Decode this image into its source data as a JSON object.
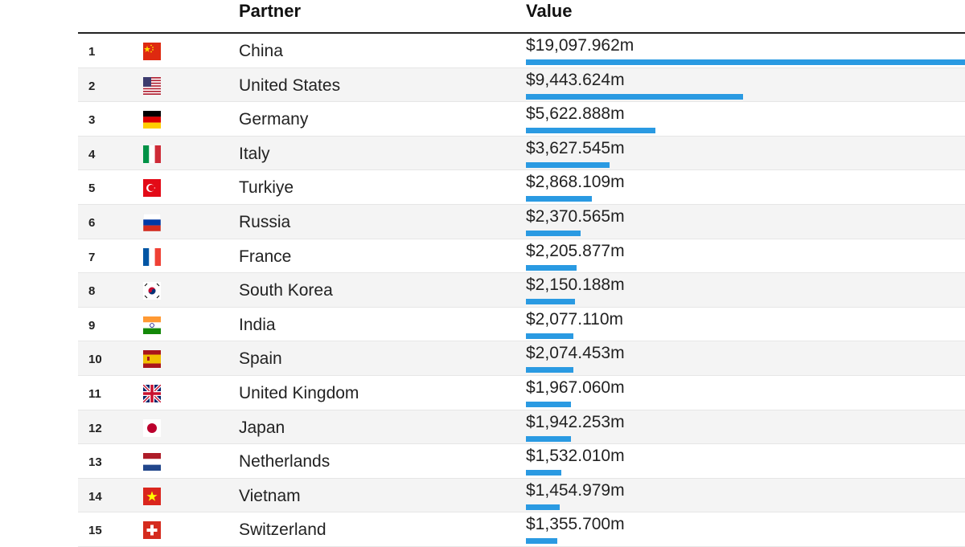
{
  "header": {
    "partner": "Partner",
    "value": "Value"
  },
  "colors": {
    "bar": "#2a9ae2"
  },
  "chart_data": {
    "type": "bar",
    "orientation": "horizontal",
    "title": "",
    "xlabel": "Value",
    "ylabel": "Partner",
    "unit": "$m",
    "categories": [
      "China",
      "United States",
      "Germany",
      "Italy",
      "Turkiye",
      "Russia",
      "France",
      "South Korea",
      "India",
      "Spain",
      "United Kingdom",
      "Japan",
      "Netherlands",
      "Vietnam",
      "Switzerland"
    ],
    "values": [
      19097.962,
      9443.624,
      5622.888,
      3627.545,
      2868.109,
      2370.565,
      2205.877,
      2150.188,
      2077.11,
      2074.453,
      1967.06,
      1942.253,
      1532.01,
      1454.979,
      1355.7
    ],
    "rows": [
      {
        "rank": "1",
        "country": "China",
        "value_label": "$19,097.962m",
        "value": 19097.962,
        "flag": "china-flag-icon"
      },
      {
        "rank": "2",
        "country": "United States",
        "value_label": "$9,443.624m",
        "value": 9443.624,
        "flag": "usa-flag-icon"
      },
      {
        "rank": "3",
        "country": "Germany",
        "value_label": "$5,622.888m",
        "value": 5622.888,
        "flag": "germany-flag-icon"
      },
      {
        "rank": "4",
        "country": "Italy",
        "value_label": "$3,627.545m",
        "value": 3627.545,
        "flag": "italy-flag-icon"
      },
      {
        "rank": "5",
        "country": "Turkiye",
        "value_label": "$2,868.109m",
        "value": 2868.109,
        "flag": "turkey-flag-icon"
      },
      {
        "rank": "6",
        "country": "Russia",
        "value_label": "$2,370.565m",
        "value": 2370.565,
        "flag": "russia-flag-icon"
      },
      {
        "rank": "7",
        "country": "France",
        "value_label": "$2,205.877m",
        "value": 2205.877,
        "flag": "france-flag-icon"
      },
      {
        "rank": "8",
        "country": "South Korea",
        "value_label": "$2,150.188m",
        "value": 2150.188,
        "flag": "south-korea-flag-icon"
      },
      {
        "rank": "9",
        "country": "India",
        "value_label": "$2,077.110m",
        "value": 2077.11,
        "flag": "india-flag-icon"
      },
      {
        "rank": "10",
        "country": "Spain",
        "value_label": "$2,074.453m",
        "value": 2074.453,
        "flag": "spain-flag-icon"
      },
      {
        "rank": "11",
        "country": "United Kingdom",
        "value_label": "$1,967.060m",
        "value": 1967.06,
        "flag": "uk-flag-icon"
      },
      {
        "rank": "12",
        "country": "Japan",
        "value_label": "$1,942.253m",
        "value": 1942.253,
        "flag": "japan-flag-icon"
      },
      {
        "rank": "13",
        "country": "Netherlands",
        "value_label": "$1,532.010m",
        "value": 1532.01,
        "flag": "netherlands-flag-icon"
      },
      {
        "rank": "14",
        "country": "Vietnam",
        "value_label": "$1,454.979m",
        "value": 1454.979,
        "flag": "vietnam-flag-icon"
      },
      {
        "rank": "15",
        "country": "Switzerland",
        "value_label": "$1,355.700m",
        "value": 1355.7,
        "flag": "switzerland-flag-icon"
      }
    ]
  }
}
